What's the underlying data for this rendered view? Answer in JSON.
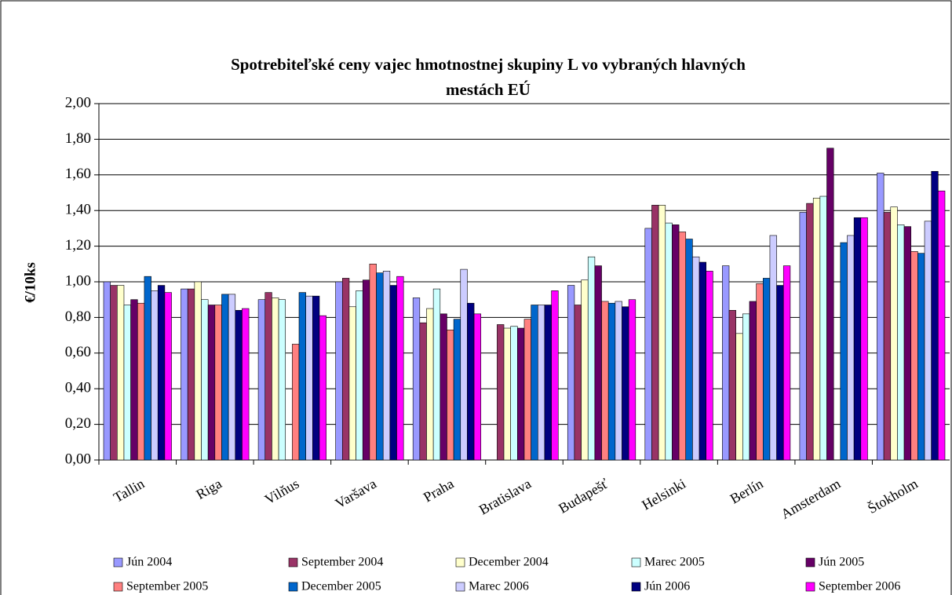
{
  "chart_data": {
    "type": "bar",
    "title": "Spotrebiteľské ceny vajec hmotnostnej skupiny L vo vybraných hlavných mestách EÚ",
    "y_label": "€/10ks",
    "categories": [
      "Tallin",
      "Riga",
      "Vilňus",
      "Varšava",
      "Praha",
      "Bratislava",
      "Budapešť",
      "Helsinki",
      "Berlín",
      "Amsterdam",
      "Štokholm"
    ],
    "series": [
      {
        "name": "Jún 2004",
        "color": "#9999ff",
        "values": [
          1.0,
          0.96,
          0.9,
          1.0,
          0.91,
          null,
          0.98,
          1.3,
          1.09,
          1.39,
          1.61
        ]
      },
      {
        "name": "September 2004",
        "color": "#993366",
        "values": [
          0.98,
          0.96,
          0.94,
          1.02,
          0.77,
          0.76,
          0.87,
          1.43,
          0.84,
          1.44,
          1.39
        ]
      },
      {
        "name": "December 2004",
        "color": "#ffffcc",
        "values": [
          0.98,
          1.0,
          0.91,
          0.86,
          0.85,
          0.74,
          1.01,
          1.43,
          0.71,
          1.47,
          1.42
        ]
      },
      {
        "name": "Marec 2005",
        "color": "#ccffff",
        "values": [
          0.87,
          0.9,
          0.9,
          0.95,
          0.96,
          0.75,
          1.14,
          1.33,
          0.82,
          1.48,
          1.32
        ]
      },
      {
        "name": "Jún 2005",
        "color": "#660066",
        "values": [
          0.9,
          0.87,
          null,
          1.01,
          0.82,
          0.74,
          1.09,
          1.32,
          0.89,
          1.75,
          1.31
        ]
      },
      {
        "name": "September 2005",
        "color": "#ff8080",
        "values": [
          0.88,
          0.87,
          0.65,
          1.1,
          0.73,
          0.79,
          0.89,
          1.28,
          0.99,
          null,
          1.17
        ]
      },
      {
        "name": "December 2005",
        "color": "#0066cc",
        "values": [
          1.03,
          0.93,
          0.94,
          1.05,
          0.79,
          0.87,
          0.88,
          1.24,
          1.02,
          1.22,
          1.16
        ]
      },
      {
        "name": "Marec 2006",
        "color": "#ccccff",
        "values": [
          0.95,
          0.93,
          0.92,
          1.06,
          1.07,
          0.87,
          0.89,
          1.14,
          1.26,
          1.26,
          1.34
        ]
      },
      {
        "name": "Jún 2006",
        "color": "#000080",
        "values": [
          0.98,
          0.84,
          0.92,
          0.98,
          0.88,
          0.87,
          0.86,
          1.11,
          0.98,
          1.36,
          1.62
        ]
      },
      {
        "name": "September 2006",
        "color": "#ff00ff",
        "values": [
          0.94,
          0.85,
          0.81,
          1.03,
          0.82,
          0.95,
          0.9,
          1.06,
          1.09,
          1.36,
          1.51
        ]
      }
    ],
    "ylim": [
      0,
      2
    ],
    "yticks": [
      {
        "value": 0,
        "label": "0,00"
      },
      {
        "value": 0.2,
        "label": "0,20"
      },
      {
        "value": 0.4,
        "label": "0,40"
      },
      {
        "value": 0.6,
        "label": "0,60"
      },
      {
        "value": 0.8,
        "label": "0,80"
      },
      {
        "value": 1.0,
        "label": "1,00"
      },
      {
        "value": 1.2,
        "label": "1,20"
      },
      {
        "value": 1.4,
        "label": "1,40"
      },
      {
        "value": 1.6,
        "label": "1,60"
      },
      {
        "value": 1.8,
        "label": "1,80"
      },
      {
        "value": 2.0,
        "label": "2,00"
      }
    ],
    "grid": true,
    "legend": "bottom"
  }
}
